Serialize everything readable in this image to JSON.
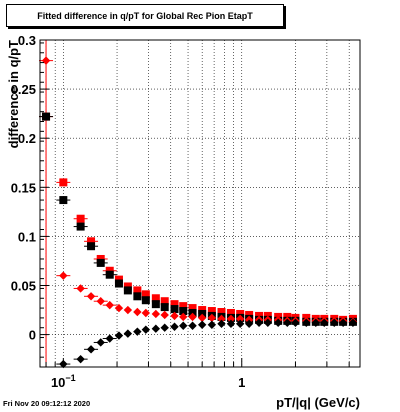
{
  "chart_data": {
    "type": "scatter",
    "title": "Fitted difference in q/pT for Global Rec Pion EtapT",
    "xlabel": "pT/|q| (GeV/c)",
    "ylabel": "difference in q/pT",
    "x_scale": "log",
    "xlim": [
      0.074,
      4.6
    ],
    "ylim": [
      -0.033,
      0.3
    ],
    "x_ticks": [
      "10^-1",
      "1"
    ],
    "y_ticks": [
      "0",
      "0.05",
      "0.1",
      "0.15",
      "0.2",
      "0.25",
      "0.3"
    ],
    "grid": true,
    "legend": "none",
    "vertical_line_x": 0.08,
    "series": [
      {
        "marker": "square",
        "color": "#ff0000",
        "x": [
          0.08,
          0.1,
          0.125,
          0.143,
          0.162,
          0.182,
          0.205,
          0.23,
          0.26,
          0.29,
          0.33,
          0.37,
          0.42,
          0.47,
          0.53,
          0.6,
          0.68,
          0.77,
          0.87,
          0.98,
          1.1,
          1.25,
          1.4,
          1.6,
          1.8,
          2.0,
          2.3,
          2.6,
          2.9,
          3.3,
          3.7,
          4.2
        ],
        "y": [
          0.222,
          0.155,
          0.118,
          0.095,
          0.077,
          0.065,
          0.056,
          0.049,
          0.045,
          0.041,
          0.037,
          0.034,
          0.031,
          0.029,
          0.027,
          0.025,
          0.024,
          0.023,
          0.022,
          0.021,
          0.02,
          0.019,
          0.019,
          0.018,
          0.018,
          0.017,
          0.017,
          0.016,
          0.016,
          0.016,
          0.015,
          0.016
        ]
      },
      {
        "marker": "square",
        "color": "#000000",
        "x": [
          0.08,
          0.1,
          0.125,
          0.143,
          0.162,
          0.182,
          0.205,
          0.23,
          0.26,
          0.29,
          0.33,
          0.37,
          0.42,
          0.47,
          0.53,
          0.6,
          0.68,
          0.77,
          0.87,
          0.98,
          1.1,
          1.25,
          1.4,
          1.6,
          1.8,
          2.0,
          2.3,
          2.6,
          2.9,
          3.3,
          3.7,
          4.2
        ],
        "y": [
          0.222,
          0.137,
          0.11,
          0.09,
          0.073,
          0.061,
          0.052,
          0.045,
          0.039,
          0.035,
          0.031,
          0.028,
          0.026,
          0.024,
          0.022,
          0.021,
          0.019,
          0.018,
          0.017,
          0.017,
          0.016,
          0.015,
          0.015,
          0.014,
          0.014,
          0.014,
          0.013,
          0.013,
          0.013,
          0.013,
          0.013,
          0.013
        ]
      },
      {
        "marker": "diamond",
        "color": "#ff0000",
        "x": [
          0.08,
          0.1,
          0.125,
          0.143,
          0.162,
          0.182,
          0.205,
          0.23,
          0.26,
          0.29,
          0.33,
          0.37,
          0.42,
          0.47,
          0.53,
          0.6,
          0.68,
          0.77,
          0.87,
          0.98,
          1.1,
          1.25,
          1.4,
          1.6,
          1.8,
          2.0,
          2.3,
          2.6,
          2.9,
          3.3,
          3.7,
          4.2
        ],
        "y": [
          0.279,
          0.06,
          0.047,
          0.039,
          0.034,
          0.03,
          0.027,
          0.025,
          0.023,
          0.022,
          0.021,
          0.02,
          0.019,
          0.018,
          0.018,
          0.017,
          0.017,
          0.016,
          0.016,
          0.016,
          0.015,
          0.015,
          0.015,
          0.015,
          0.014,
          0.014,
          0.014,
          0.014,
          0.014,
          0.014,
          0.014,
          0.013
        ]
      },
      {
        "marker": "diamond",
        "color": "#000000",
        "x": [
          0.1,
          0.125,
          0.143,
          0.162,
          0.182,
          0.205,
          0.23,
          0.26,
          0.29,
          0.33,
          0.37,
          0.42,
          0.47,
          0.53,
          0.6,
          0.68,
          0.77,
          0.87,
          0.98,
          1.1,
          1.25,
          1.4,
          1.6,
          1.8,
          2.0,
          2.3,
          2.6,
          2.9,
          3.3,
          3.7,
          4.2
        ],
        "y": [
          -0.03,
          -0.025,
          -0.015,
          -0.008,
          -0.004,
          -0.001,
          0.001,
          0.003,
          0.005,
          0.006,
          0.007,
          0.008,
          0.009,
          0.009,
          0.01,
          0.01,
          0.011,
          0.011,
          0.011,
          0.011,
          0.012,
          0.012,
          0.012,
          0.012,
          0.012,
          0.012,
          0.012,
          0.012,
          0.012,
          0.012,
          0.012
        ]
      }
    ]
  },
  "footer": {
    "timestamp": "Fri Nov 20 09:12:12 2020"
  }
}
